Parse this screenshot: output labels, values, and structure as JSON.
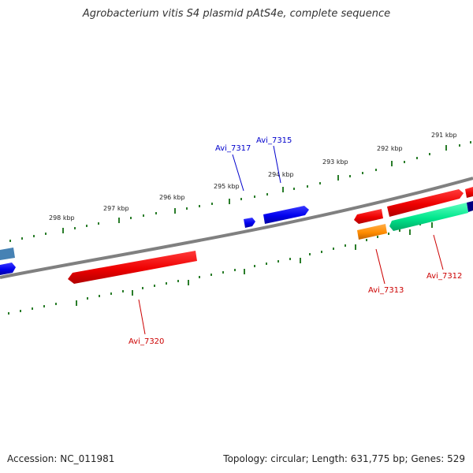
{
  "title": "Agrobacterium vitis S4 plasmid pAtS4e, complete sequence",
  "footer": {
    "accession": "Accession: NC_011981",
    "summary": "Topology: circular; Length: 631,775 bp; Genes: 529"
  },
  "ticks": [
    "298 kbp",
    "297 kbp",
    "296 kbp",
    "295 kbp",
    "294 kbp",
    "293 kbp",
    "292 kbp",
    "291 kbp"
  ],
  "genes": {
    "Avi_7317": "Avi_7317",
    "Avi_7315": "Avi_7315",
    "Avi_7313": "Avi_7313",
    "Avi_7312": "Avi_7312",
    "Avi_7320": "Avi_7320"
  },
  "colors": {
    "backbone": "#808080",
    "tick": "#2a7d2a",
    "forward_gene": "#0000ee",
    "reverse_gene": "#ee0000",
    "orange_gene": "#ff8c00",
    "teal_gene": "#00e68c",
    "steel_gene": "#4682b4",
    "navy_gene": "#000080",
    "label_blue": "#0000cc",
    "label_red": "#cc0000"
  }
}
